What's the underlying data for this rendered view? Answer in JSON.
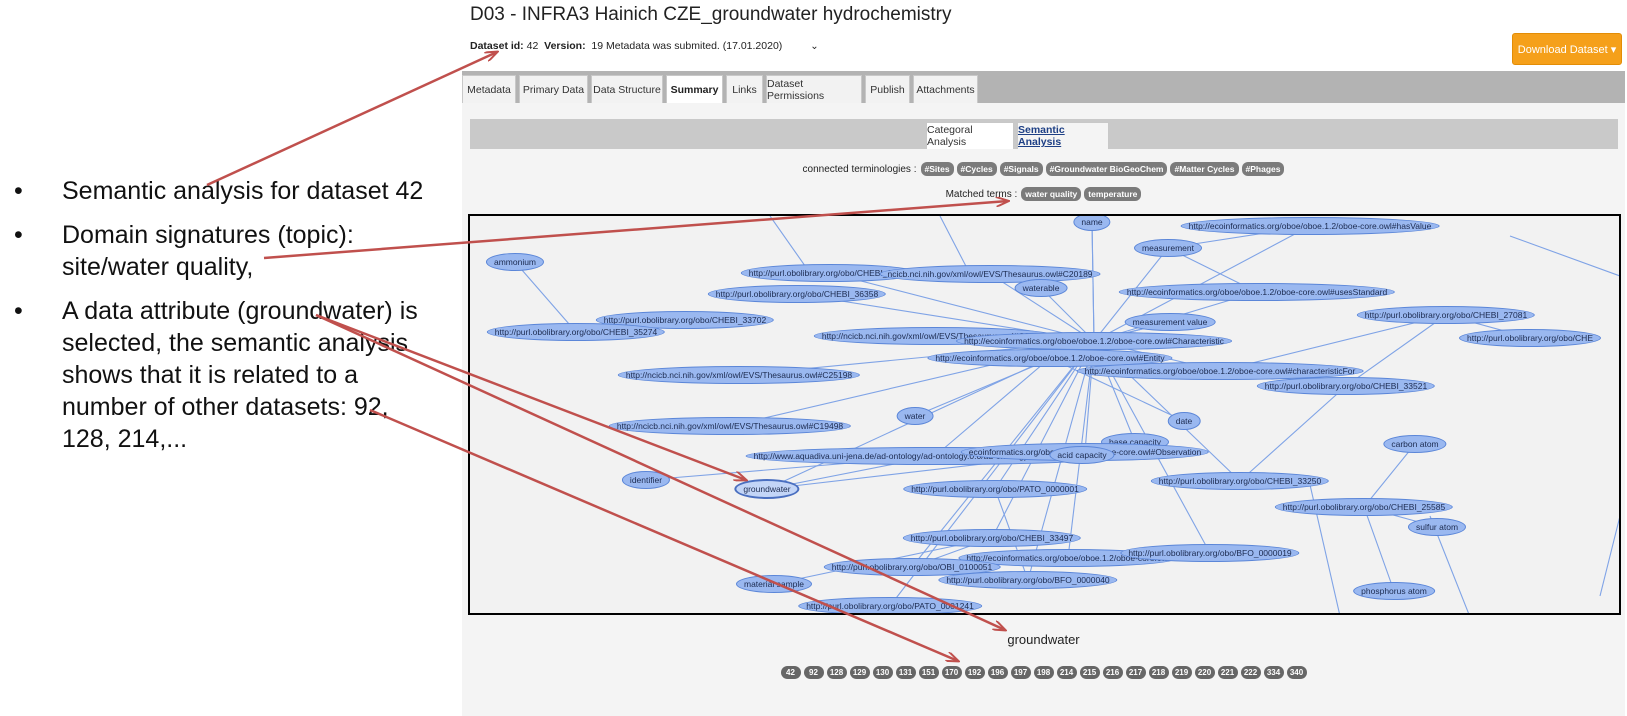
{
  "bullets": [
    {
      "symbol": "•",
      "lines": [
        "Semantic analysis for dataset 42"
      ]
    },
    {
      "symbol": "•",
      "lines": [
        "Domain signatures (topic):",
        "site/water quality,"
      ]
    },
    {
      "symbol": "•",
      "lines": [
        "A data attribute (groundwater) is",
        "selected, the semantic analysis",
        "shows that it is related to a",
        "number of other datasets: 92,",
        "128, 214,..."
      ]
    }
  ],
  "header": {
    "title": "D03 - INFRA3 Hainich CZE_groundwater hydrochemistry",
    "dataset_id_label": "Dataset id:",
    "dataset_id": "42",
    "version_label": "Version:",
    "version_value": "19 Metadata was submited. (17.01.2020)",
    "download_label": "Download Dataset ▾"
  },
  "tabs": [
    "Metadata",
    "Primary Data",
    "Data Structure",
    "Summary",
    "Links",
    "Dataset Permissions",
    "Publish",
    "Attachments"
  ],
  "active_tab": "Summary",
  "subtabs": [
    "Categoral Analysis",
    "Semantic Analysis"
  ],
  "active_subtab": "Semantic Analysis",
  "connected": {
    "label": "connected terminologies :",
    "tags": [
      "#Sites",
      "#Cycles",
      "#Signals",
      "#Groundwater BioGeoChem",
      "#Matter Cycles",
      "#Phages"
    ]
  },
  "matched": {
    "label": "Matched terms :",
    "tags": [
      "water quality",
      "temperature"
    ]
  },
  "graph": {
    "nodes": [
      "name",
      "http://ecoinformatics.org/oboe/oboe.1.2/oboe-core.owl#hasValue",
      "measurement",
      "ammonium",
      "http://purl.obolibrary.org/obo/CHEBI_36357",
      "ncicb.nci.nih.gov/xml/owl/EVS/Thesaurus.owl#C20189",
      "http://purl.obolibrary.org/obo/CHEBI_36358",
      "waterable",
      "http://ecoinformatics.org/oboe/oboe.1.2/oboe-core.owl#usesStandard",
      "http://purl.obolibrary.org/obo/CHEBI_33702",
      "http://purl.obolibrary.org/obo/CHEBI_35274",
      "http://purl.obolibrary.org/obo/CHEBI_27081",
      "http://purl.obolibrary.org/obo/CHE",
      "measurement value",
      "http://ncicb.nci.nih.gov/xml/owl/EVS/Thesaurus.owl#C20181",
      "http://ecoinformatics.org/oboe/oboe.1.2/oboe-core.owl#Characteristic",
      "http://ecoinformatics.org/oboe/oboe.1.2/oboe-core.owl#Entity",
      "http://ecoinformatics.org/oboe/oboe.1.2/oboe-core.owl#characteristicFor",
      "http://ncicb.nci.nih.gov/xml/owl/EVS/Thesaurus.owl#C25198",
      "http://purl.obolibrary.org/obo/CHEBI_33521",
      "water",
      "date",
      "http://ncicb.nci.nih.gov/xml/owl/EVS/Thesaurus.owl#C19498",
      "base capacity",
      "carbon atom",
      "http://www.aquadiva.uni-jena.de/ad-ontology/ad-ontology.0.0/ad-ontology-entities.owl#Porewater",
      "ecoinformatics.org/oboe/oboe.1.2/oboe-core.owl#Observation",
      "acid capacity",
      "identifier",
      "http://purl.obolibrary.org/obo/CHEBI_33250",
      "groundwater",
      "http://purl.obolibrary.org/obo/PATO_0000001",
      "http://purl.obolibrary.org/obo/CHEBI_25585",
      "sulfur atom",
      "http://purl.obolibrary.org/obo/CHEBI_33497",
      "http://ecoinformatics.org/oboe/oboe.1.2/oboe-core.owl",
      "http://purl.obolibrary.org/obo/BFO_0000019",
      "http://purl.obolibrary.org/obo/OBI_0100051",
      "material sample",
      "http://purl.obolibrary.org/obo/BFO_0000040",
      "phosphorus atom",
      "http://purl.obolibrary.org/obo/PATO_0001241"
    ]
  },
  "selected_attribute": "groundwater",
  "related_datasets": [
    "42",
    "92",
    "128",
    "129",
    "130",
    "131",
    "151",
    "170",
    "192",
    "196",
    "197",
    "198",
    "214",
    "215",
    "216",
    "217",
    "218",
    "219",
    "220",
    "221",
    "222",
    "334",
    "340"
  ],
  "colors": {
    "node_fill": "#9ab8f0",
    "node_border": "#5b86d8",
    "edge": "#7fa3e6",
    "arrow": "#c0504d",
    "download_bg": "#f5a01a",
    "tag_bg": "#7b7b7b"
  }
}
